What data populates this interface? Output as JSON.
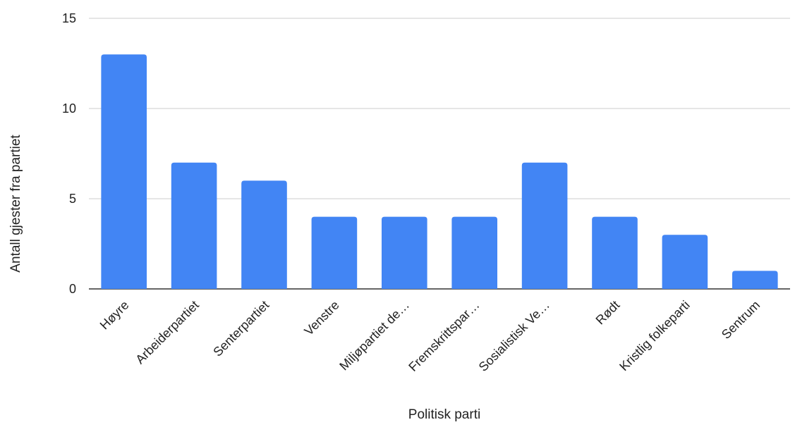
{
  "chart_data": {
    "type": "bar",
    "title": "",
    "xlabel": "Politisk parti",
    "ylabel": "Antall gjester fra partiet",
    "categories": [
      "Høyre",
      "Arbeiderpartiet",
      "Senterpartiet",
      "Venstre",
      "Miljøpartiet de…",
      "Fremskrittspar…",
      "Sosialistisk Ve…",
      "Rødt",
      "Kristlig folkeparti",
      "Sentrum"
    ],
    "values": [
      13,
      7,
      6,
      4,
      4,
      4,
      7,
      4,
      3,
      1
    ],
    "ylim": [
      0,
      15
    ],
    "yticks": [
      0,
      5,
      10,
      15
    ],
    "grid": true,
    "legend": "none",
    "colors": {
      "bar": "#4285f4"
    }
  }
}
